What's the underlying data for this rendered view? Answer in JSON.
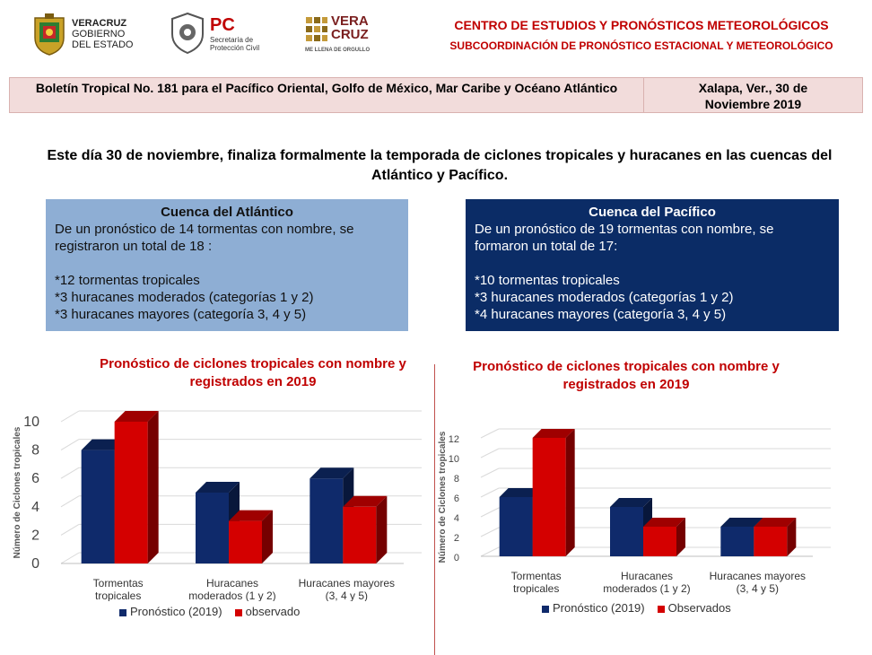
{
  "header": {
    "logo_veracruz_lines": [
      "VERACRUZ",
      "GOBIERNO",
      "DEL ESTADO"
    ],
    "logo_pc_big": "PC",
    "logo_pc_lines": [
      "Secretaría de",
      "Protección Civil"
    ],
    "logo_veracruz2_lines": [
      "VERA",
      "CRUZ"
    ],
    "logo_veracruz2_tagline": "ME LLENA DE ORGULLO",
    "title": "CENTRO DE ESTUDIOS Y PRONÓSTICOS METEOROLÓGICOS",
    "subtitle": "SUBCOORDINACIÓN DE PRONÓSTICO  ESTACIONAL Y METEOROLÓGICO"
  },
  "bulletin": {
    "title": "Boletín Tropical No. 181 para el Pacífico Oriental, Golfo de México, Mar Caribe y Océano Atlántico",
    "place_date": "Xalapa, Ver., 30 de Noviembre 2019"
  },
  "lead": "Este día 30 de noviembre, finaliza  formalmente la temporada de ciclones tropicales y huracanes en las cuencas del Atlántico y Pacífico.",
  "atlantic": {
    "heading": "Cuenca del Atlántico",
    "summary": "De un pronóstico de 14 tormentas con nombre, se registraron un total de 18 :",
    "items": [
      "*12 tormentas tropicales",
      "*3 huracanes moderados (categorías 1 y 2)",
      "*3 huracanes mayores (categoría 3, 4 y 5)"
    ]
  },
  "pacific": {
    "heading": "Cuenca del Pacífico",
    "summary": "De un pronóstico de 19 tormentas con nombre, se formaron un total de 17:",
    "items": [
      "*10 tormentas tropicales",
      "*3 huracanes moderados (categorías 1 y 2)",
      "*4 huracanes mayores (categoría 3, 4 y 5)"
    ]
  },
  "colors": {
    "forecast": "#0f2a6b",
    "observed": "#d40000",
    "title_red": "#c00000",
    "atlantic_box": "#8eaed4",
    "pacific_box": "#0b2c66"
  },
  "chart_data": [
    {
      "type": "bar",
      "title": "Pronóstico de ciclones tropicales con nombre y registrados en 2019",
      "ylabel": "Número de Ciclones tropicales",
      "categories": [
        "Tormentas tropicales",
        "Huracanes moderados (1 y 2)",
        "Huracanes mayores (3, 4 y 5)"
      ],
      "series": [
        {
          "name": "Pronóstico (2019)",
          "values": [
            8,
            5,
            6
          ]
        },
        {
          "name": "observado",
          "values": [
            10,
            3,
            4
          ]
        }
      ],
      "ylim": [
        0,
        10
      ],
      "yticks": [
        0,
        2,
        4,
        6,
        8,
        10
      ],
      "grid": true,
      "legend": "bottom"
    },
    {
      "type": "bar",
      "title": "Pronóstico de ciclones tropicales con nombre y registrados en 2019",
      "ylabel": "Número de Ciclones tropicales",
      "categories": [
        "Tormentas tropicales",
        "Huracanes moderados (1 y 2)",
        "Huracanes mayores (3, 4 y 5)"
      ],
      "series": [
        {
          "name": "Pronóstico (2019)",
          "values": [
            6,
            5,
            3
          ]
        },
        {
          "name": "Observados",
          "values": [
            12,
            3,
            3
          ]
        }
      ],
      "ylim": [
        0,
        12
      ],
      "yticks": [
        0,
        2,
        4,
        6,
        8,
        10,
        12
      ],
      "grid": true,
      "legend": "bottom"
    }
  ]
}
